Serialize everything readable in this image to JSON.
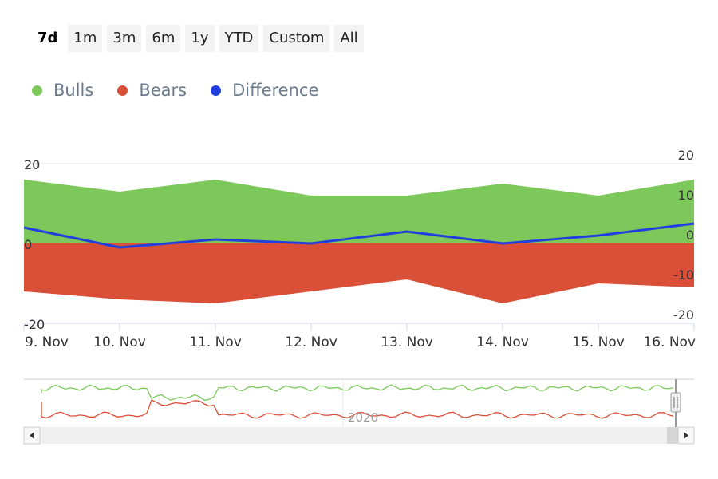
{
  "range_selector": {
    "buttons": [
      "7d",
      "1m",
      "3m",
      "6m",
      "1y",
      "YTD",
      "Custom",
      "All"
    ],
    "active": "7d"
  },
  "chart_data": {
    "type": "area",
    "x": [
      "9. Nov",
      "10. Nov",
      "11. Nov",
      "12. Nov",
      "13. Nov",
      "14. Nov",
      "15. Nov",
      "16. Nov"
    ],
    "series": [
      {
        "name": "Bulls",
        "color": "#7cc85a",
        "values": [
          16,
          13,
          16,
          12,
          12,
          15,
          12,
          16
        ]
      },
      {
        "name": "Bears",
        "color": "#d94f38",
        "values": [
          -12,
          -14,
          -15,
          -12,
          -9,
          -15,
          -10,
          -11
        ]
      },
      {
        "name": "Difference",
        "color": "#1f3fe0",
        "values": [
          4,
          -1,
          1,
          0,
          3,
          0,
          2,
          5
        ]
      }
    ],
    "left_axis": {
      "range": [
        -20,
        20
      ],
      "ticks": [
        "20",
        "0",
        "-20"
      ]
    },
    "right_axis": {
      "range": [
        -20,
        20
      ],
      "ticks": [
        "20",
        "10",
        "0",
        "-10",
        "-20"
      ]
    },
    "navigator": {
      "label": "2020"
    }
  }
}
